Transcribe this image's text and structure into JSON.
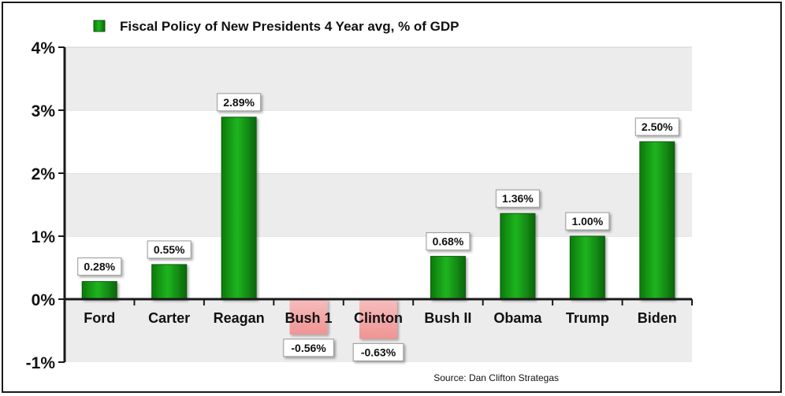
{
  "chart_data": {
    "type": "bar",
    "title": "",
    "categories": [
      "Ford",
      "Carter",
      "Reagan",
      "Bush 1",
      "Clinton",
      "Bush II",
      "Obama",
      "Trump",
      "Biden"
    ],
    "series": [
      {
        "name": "Fiscal Policy of New Presidents 4 Year avg, % of GDP",
        "values": [
          0.28,
          0.55,
          2.89,
          -0.56,
          -0.63,
          0.68,
          1.36,
          1.0,
          2.5
        ],
        "labels": [
          "0.28%",
          "0.55%",
          "2.89%",
          "-0.56%",
          "-0.63%",
          "0.68%",
          "1.36%",
          "1.00%",
          "2.50%"
        ]
      }
    ],
    "ylim": [
      -1,
      4
    ],
    "yticks": [
      -1,
      0,
      1,
      2,
      3,
      4
    ],
    "ytick_labels": [
      "-1%",
      "0%",
      "1%",
      "2%",
      "3%",
      "4%"
    ],
    "xlabel": "",
    "ylabel": "",
    "grid": "alternating horizontal bands",
    "legend_position": "top-left",
    "source": "Source: Dan Clifton Strategas",
    "colors": {
      "positive": "#139a13",
      "positive_dark": "#0a6e0a",
      "negative": "#f4a0a0",
      "band": "#ececec",
      "axis": "#1a1a1a"
    }
  }
}
